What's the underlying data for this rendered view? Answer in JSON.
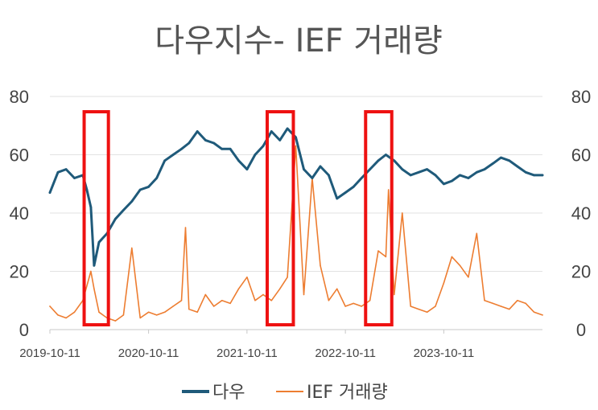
{
  "chart_data": {
    "type": "line",
    "title": "다우지수- IEF 거래량",
    "y_left_ticks": [
      "80",
      "60",
      "40",
      "20",
      "0"
    ],
    "y_right_ticks": [
      "80",
      "60",
      "40",
      "20",
      "0"
    ],
    "ylim": [
      0,
      80
    ],
    "x_tick_labels": [
      "2019-10-11",
      "2020-10-11",
      "2021-10-11",
      "2022-10-11",
      "2023-10-11"
    ],
    "xlim": [
      "2019-10-11",
      "2024-10-11"
    ],
    "grid": true,
    "legend": "bottom",
    "colors": {
      "dow": "#1f5a7a",
      "ief": "#ed7d31",
      "highlight": "#ee1111"
    },
    "series": [
      {
        "name": "다우",
        "x": [
          "2019-10-11",
          "2019-11-10",
          "2019-12-10",
          "2020-01-10",
          "2020-02-10",
          "2020-02-25",
          "2020-03-11",
          "2020-03-23",
          "2020-04-10",
          "2020-05-10",
          "2020-06-10",
          "2020-07-10",
          "2020-08-10",
          "2020-09-10",
          "2020-10-11",
          "2020-11-10",
          "2020-12-10",
          "2021-01-10",
          "2021-02-10",
          "2021-03-10",
          "2021-04-10",
          "2021-05-10",
          "2021-06-10",
          "2021-07-10",
          "2021-08-10",
          "2021-09-10",
          "2021-10-11",
          "2021-11-10",
          "2021-12-10",
          "2022-01-10",
          "2022-02-10",
          "2022-03-10",
          "2022-04-10",
          "2022-05-10",
          "2022-06-10",
          "2022-07-10",
          "2022-08-10",
          "2022-09-10",
          "2022-10-11",
          "2022-11-10",
          "2022-12-10",
          "2023-01-10",
          "2023-02-10",
          "2023-03-10",
          "2023-04-10",
          "2023-05-10",
          "2023-06-10",
          "2023-07-10",
          "2023-08-10",
          "2023-09-10",
          "2023-10-11",
          "2023-11-10",
          "2023-12-10",
          "2024-01-10",
          "2024-02-10",
          "2024-03-10",
          "2024-04-10",
          "2024-05-10",
          "2024-06-10",
          "2024-07-10",
          "2024-08-10",
          "2024-09-10",
          "2024-10-11"
        ],
        "values": [
          47,
          54,
          55,
          52,
          53,
          48,
          42,
          22,
          30,
          33,
          38,
          41,
          44,
          48,
          49,
          52,
          58,
          60,
          62,
          64,
          68,
          65,
          64,
          62,
          62,
          58,
          55,
          60,
          63,
          68,
          65,
          69,
          66,
          55,
          52,
          56,
          53,
          45,
          47,
          49,
          52,
          55,
          58,
          60,
          58,
          55,
          53,
          54,
          55,
          53,
          50,
          51,
          53,
          52,
          54,
          55,
          57,
          59,
          58,
          56,
          54,
          53,
          53
        ]
      },
      {
        "name": "IEF 거래량",
        "x": [
          "2019-10-11",
          "2019-11-10",
          "2019-12-10",
          "2020-01-10",
          "2020-02-10",
          "2020-03-11",
          "2020-03-23",
          "2020-04-10",
          "2020-05-10",
          "2020-06-10",
          "2020-07-10",
          "2020-08-10",
          "2020-09-10",
          "2020-10-11",
          "2020-11-10",
          "2020-12-10",
          "2021-01-10",
          "2021-02-10",
          "2021-02-25",
          "2021-03-10",
          "2021-04-10",
          "2021-05-10",
          "2021-06-10",
          "2021-07-10",
          "2021-08-10",
          "2021-09-10",
          "2021-10-11",
          "2021-11-10",
          "2021-12-10",
          "2022-01-10",
          "2022-02-10",
          "2022-03-10",
          "2022-04-10",
          "2022-05-10",
          "2022-06-10",
          "2022-07-10",
          "2022-08-10",
          "2022-09-10",
          "2022-10-11",
          "2022-11-10",
          "2022-12-10",
          "2023-01-10",
          "2023-02-10",
          "2023-03-10",
          "2023-03-20",
          "2023-04-10",
          "2023-05-10",
          "2023-06-10",
          "2023-07-10",
          "2023-08-10",
          "2023-09-10",
          "2023-10-11",
          "2023-11-10",
          "2023-12-10",
          "2024-01-10",
          "2024-02-10",
          "2024-03-10",
          "2024-04-10",
          "2024-05-10",
          "2024-06-10",
          "2024-07-10",
          "2024-08-10",
          "2024-09-10",
          "2024-10-11"
        ],
        "values": [
          8,
          5,
          4,
          6,
          10,
          20,
          14,
          6,
          4,
          3,
          5,
          28,
          4,
          6,
          5,
          6,
          8,
          10,
          35,
          7,
          6,
          12,
          8,
          10,
          9,
          14,
          18,
          10,
          12,
          10,
          14,
          18,
          63,
          12,
          52,
          22,
          10,
          14,
          8,
          9,
          8,
          10,
          27,
          25,
          48,
          12,
          40,
          8,
          7,
          6,
          8,
          16,
          25,
          22,
          18,
          33,
          10,
          9,
          8,
          7,
          10,
          9,
          6,
          5
        ]
      }
    ],
    "annotations": [
      {
        "type": "highlight-box",
        "x_start": "2020-02-15",
        "x_end": "2020-05-15"
      },
      {
        "type": "highlight-box",
        "x_start": "2021-12-25",
        "x_end": "2022-04-01"
      },
      {
        "type": "highlight-box",
        "x_start": "2022-12-25",
        "x_end": "2023-04-01"
      }
    ]
  },
  "legend": {
    "dow_label": "다우",
    "ief_label": "IEF 거래량"
  }
}
